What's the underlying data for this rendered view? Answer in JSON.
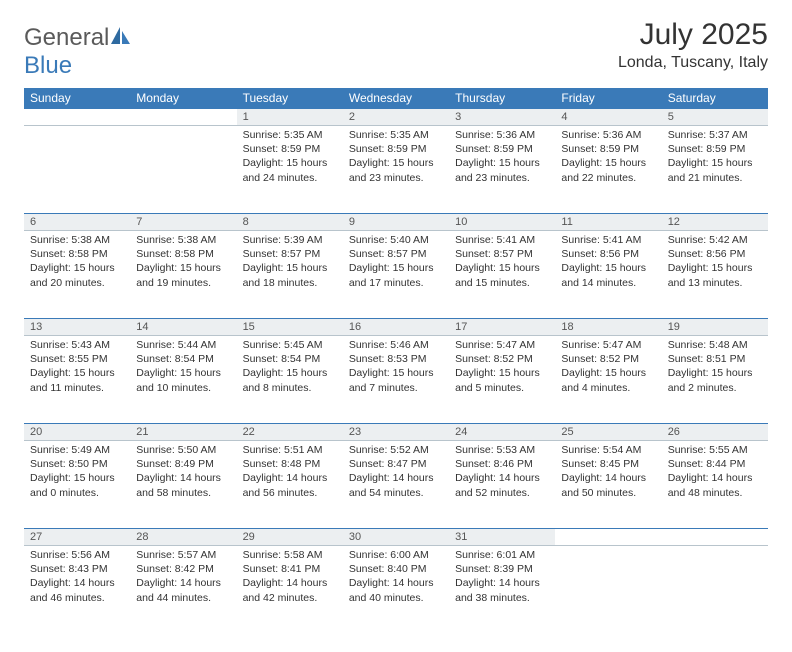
{
  "logo": {
    "word1": "General",
    "word2": "Blue"
  },
  "title": "July 2025",
  "location": "Londa, Tuscany, Italy",
  "colors": {
    "header_bg": "#3a7ab8",
    "header_text": "#ffffff",
    "daynum_bg": "#eceff1",
    "grid_border": "#b8c4cc",
    "row_top_border": "#3a7ab8",
    "body_text": "#333333",
    "logo_gray": "#5a5a5a",
    "logo_blue": "#3a7ab8"
  },
  "weekdays": [
    "Sunday",
    "Monday",
    "Tuesday",
    "Wednesday",
    "Thursday",
    "Friday",
    "Saturday"
  ],
  "weeks": [
    {
      "days": [
        null,
        null,
        {
          "num": "1",
          "sunrise": "5:35 AM",
          "sunset": "8:59 PM",
          "daylight": "15 hours and 24 minutes."
        },
        {
          "num": "2",
          "sunrise": "5:35 AM",
          "sunset": "8:59 PM",
          "daylight": "15 hours and 23 minutes."
        },
        {
          "num": "3",
          "sunrise": "5:36 AM",
          "sunset": "8:59 PM",
          "daylight": "15 hours and 23 minutes."
        },
        {
          "num": "4",
          "sunrise": "5:36 AM",
          "sunset": "8:59 PM",
          "daylight": "15 hours and 22 minutes."
        },
        {
          "num": "5",
          "sunrise": "5:37 AM",
          "sunset": "8:59 PM",
          "daylight": "15 hours and 21 minutes."
        }
      ]
    },
    {
      "days": [
        {
          "num": "6",
          "sunrise": "5:38 AM",
          "sunset": "8:58 PM",
          "daylight": "15 hours and 20 minutes."
        },
        {
          "num": "7",
          "sunrise": "5:38 AM",
          "sunset": "8:58 PM",
          "daylight": "15 hours and 19 minutes."
        },
        {
          "num": "8",
          "sunrise": "5:39 AM",
          "sunset": "8:57 PM",
          "daylight": "15 hours and 18 minutes."
        },
        {
          "num": "9",
          "sunrise": "5:40 AM",
          "sunset": "8:57 PM",
          "daylight": "15 hours and 17 minutes."
        },
        {
          "num": "10",
          "sunrise": "5:41 AM",
          "sunset": "8:57 PM",
          "daylight": "15 hours and 15 minutes."
        },
        {
          "num": "11",
          "sunrise": "5:41 AM",
          "sunset": "8:56 PM",
          "daylight": "15 hours and 14 minutes."
        },
        {
          "num": "12",
          "sunrise": "5:42 AM",
          "sunset": "8:56 PM",
          "daylight": "15 hours and 13 minutes."
        }
      ]
    },
    {
      "days": [
        {
          "num": "13",
          "sunrise": "5:43 AM",
          "sunset": "8:55 PM",
          "daylight": "15 hours and 11 minutes."
        },
        {
          "num": "14",
          "sunrise": "5:44 AM",
          "sunset": "8:54 PM",
          "daylight": "15 hours and 10 minutes."
        },
        {
          "num": "15",
          "sunrise": "5:45 AM",
          "sunset": "8:54 PM",
          "daylight": "15 hours and 8 minutes."
        },
        {
          "num": "16",
          "sunrise": "5:46 AM",
          "sunset": "8:53 PM",
          "daylight": "15 hours and 7 minutes."
        },
        {
          "num": "17",
          "sunrise": "5:47 AM",
          "sunset": "8:52 PM",
          "daylight": "15 hours and 5 minutes."
        },
        {
          "num": "18",
          "sunrise": "5:47 AM",
          "sunset": "8:52 PM",
          "daylight": "15 hours and 4 minutes."
        },
        {
          "num": "19",
          "sunrise": "5:48 AM",
          "sunset": "8:51 PM",
          "daylight": "15 hours and 2 minutes."
        }
      ]
    },
    {
      "days": [
        {
          "num": "20",
          "sunrise": "5:49 AM",
          "sunset": "8:50 PM",
          "daylight": "15 hours and 0 minutes."
        },
        {
          "num": "21",
          "sunrise": "5:50 AM",
          "sunset": "8:49 PM",
          "daylight": "14 hours and 58 minutes."
        },
        {
          "num": "22",
          "sunrise": "5:51 AM",
          "sunset": "8:48 PM",
          "daylight": "14 hours and 56 minutes."
        },
        {
          "num": "23",
          "sunrise": "5:52 AM",
          "sunset": "8:47 PM",
          "daylight": "14 hours and 54 minutes."
        },
        {
          "num": "24",
          "sunrise": "5:53 AM",
          "sunset": "8:46 PM",
          "daylight": "14 hours and 52 minutes."
        },
        {
          "num": "25",
          "sunrise": "5:54 AM",
          "sunset": "8:45 PM",
          "daylight": "14 hours and 50 minutes."
        },
        {
          "num": "26",
          "sunrise": "5:55 AM",
          "sunset": "8:44 PM",
          "daylight": "14 hours and 48 minutes."
        }
      ]
    },
    {
      "days": [
        {
          "num": "27",
          "sunrise": "5:56 AM",
          "sunset": "8:43 PM",
          "daylight": "14 hours and 46 minutes."
        },
        {
          "num": "28",
          "sunrise": "5:57 AM",
          "sunset": "8:42 PM",
          "daylight": "14 hours and 44 minutes."
        },
        {
          "num": "29",
          "sunrise": "5:58 AM",
          "sunset": "8:41 PM",
          "daylight": "14 hours and 42 minutes."
        },
        {
          "num": "30",
          "sunrise": "6:00 AM",
          "sunset": "8:40 PM",
          "daylight": "14 hours and 40 minutes."
        },
        {
          "num": "31",
          "sunrise": "6:01 AM",
          "sunset": "8:39 PM",
          "daylight": "14 hours and 38 minutes."
        },
        null,
        null
      ]
    }
  ],
  "labels": {
    "sunrise": "Sunrise:",
    "sunset": "Sunset:",
    "daylight": "Daylight:"
  }
}
